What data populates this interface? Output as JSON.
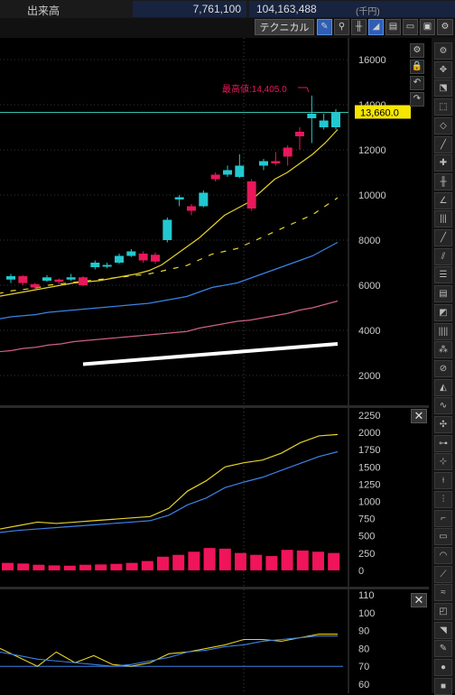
{
  "header": {
    "volume_label": "出来高",
    "volume_value": "7,761,100",
    "amount_value": "104,163,488",
    "amount_unit": "(千円)"
  },
  "toolbar": {
    "tech_label": "テクニカル",
    "icons": [
      "pencil-icon",
      "zoom-icon",
      "bar-type-icon",
      "area-chart-icon",
      "print-icon",
      "folder-icon",
      "save-icon",
      "settings-icon"
    ]
  },
  "main_chart": {
    "high_label": "最高値:14,405.0",
    "current_price": "13,660.0",
    "y_ticks": [
      "16000",
      "14000",
      "12000",
      "10000",
      "8000",
      "6000",
      "4000",
      "2000"
    ],
    "colors": {
      "up": "#22c8d0",
      "down": "#e8185a",
      "ma_short": "#e6d22a",
      "ma_mid": "#3c82e6",
      "ma_long": "#d06080",
      "current_line": "#3ac0b0"
    }
  },
  "volume_chart": {
    "y_ticks": [
      "2250",
      "2000",
      "1750",
      "1500",
      "1250",
      "1000",
      "750",
      "500",
      "250",
      "0"
    ],
    "colors": {
      "bar": "#f0145a",
      "line1": "#e6d22a",
      "line2": "#3c82e6"
    }
  },
  "osc_chart": {
    "y_ticks": [
      "110",
      "100",
      "90",
      "80",
      "70",
      "60"
    ],
    "colors": {
      "line1": "#e6d22a",
      "line2": "#3c82e6",
      "ref": "#3c82e6"
    }
  },
  "chart_data": {
    "type": "line",
    "candles": [
      {
        "o": 6250,
        "c": 6400,
        "h": 6500,
        "l": 6100
      },
      {
        "o": 6400,
        "c": 6100,
        "h": 6450,
        "l": 6000
      },
      {
        "o": 6050,
        "c": 5900,
        "h": 6100,
        "l": 5800
      },
      {
        "o": 6200,
        "c": 6350,
        "h": 6450,
        "l": 6150
      },
      {
        "o": 6250,
        "c": 6150,
        "h": 6300,
        "l": 6050
      },
      {
        "o": 6250,
        "c": 6350,
        "h": 6500,
        "l": 6200
      },
      {
        "o": 6350,
        "c": 6000,
        "h": 6400,
        "l": 5950
      },
      {
        "o": 6800,
        "c": 7000,
        "h": 7100,
        "l": 6700
      },
      {
        "o": 6850,
        "c": 6900,
        "h": 7000,
        "l": 6750
      },
      {
        "o": 7000,
        "c": 7300,
        "h": 7400,
        "l": 6950
      },
      {
        "o": 7300,
        "c": 7500,
        "h": 7600,
        "l": 7250
      },
      {
        "o": 7400,
        "c": 7100,
        "h": 7500,
        "l": 7000
      },
      {
        "o": 7350,
        "c": 7050,
        "h": 7450,
        "l": 6950
      },
      {
        "o": 8000,
        "c": 8900,
        "h": 9000,
        "l": 7900
      },
      {
        "o": 9800,
        "c": 9900,
        "h": 10000,
        "l": 9500
      },
      {
        "o": 9500,
        "c": 9300,
        "h": 9600,
        "l": 9100
      },
      {
        "o": 9500,
        "c": 10100,
        "h": 10200,
        "l": 9450
      },
      {
        "o": 10900,
        "c": 10700,
        "h": 11000,
        "l": 10600
      },
      {
        "o": 10900,
        "c": 11100,
        "h": 11300,
        "l": 10800
      },
      {
        "o": 10800,
        "c": 11300,
        "h": 11800,
        "l": 10750
      },
      {
        "o": 10600,
        "c": 9400,
        "h": 10700,
        "l": 9300
      },
      {
        "o": 11300,
        "c": 11500,
        "h": 11600,
        "l": 11100
      },
      {
        "o": 11500,
        "c": 11400,
        "h": 11900,
        "l": 11300
      },
      {
        "o": 12100,
        "c": 11700,
        "h": 12200,
        "l": 11300
      },
      {
        "o": 12800,
        "c": 12600,
        "h": 13000,
        "l": 12000
      },
      {
        "o": 13400,
        "c": 13600,
        "h": 14405,
        "l": 12300
      },
      {
        "o": 13000,
        "c": 13300,
        "h": 13600,
        "l": 12900
      },
      {
        "o": 13000,
        "c": 13660,
        "h": 13800,
        "l": 12900
      }
    ],
    "ma_short": [
      5500,
      5600,
      5700,
      5800,
      5900,
      6000,
      6100,
      6150,
      6200,
      6300,
      6400,
      6500,
      6650,
      6900,
      7300,
      7700,
      8100,
      8600,
      9100,
      9400,
      9700,
      10200,
      10700,
      11000,
      11400,
      11800,
      12300,
      12900
    ],
    "ma_mid": [
      4500,
      4600,
      4650,
      4700,
      4800,
      4850,
      4900,
      4950,
      5000,
      5050,
      5100,
      5150,
      5200,
      5300,
      5400,
      5500,
      5700,
      5900,
      6000,
      6100,
      6300,
      6500,
      6700,
      6900,
      7100,
      7300,
      7600,
      7900
    ],
    "ma_long": [
      3050,
      3100,
      3200,
      3250,
      3350,
      3400,
      3500,
      3550,
      3600,
      3650,
      3700,
      3750,
      3800,
      3850,
      3900,
      3950,
      4100,
      4200,
      4300,
      4400,
      4450,
      4550,
      4650,
      4750,
      4900,
      5000,
      5150,
      5300
    ],
    "ichimoku": [
      2500,
      2550,
      2600,
      2650,
      2700,
      2750,
      2800,
      2850,
      2900,
      2950,
      3000,
      3050,
      3100,
      3150,
      3200,
      3250,
      3300,
      3350,
      3400
    ],
    "volume": [
      120,
      110,
      90,
      80,
      75,
      90,
      95,
      105,
      120,
      150,
      220,
      250,
      300,
      360,
      350,
      280,
      250,
      230,
      330,
      320,
      300,
      280
    ],
    "vol_line1": [
      600,
      650,
      700,
      680,
      700,
      720,
      740,
      760,
      780,
      900,
      1150,
      1300,
      1500,
      1560,
      1600,
      1700,
      1850,
      1950,
      1970
    ],
    "vol_line2": [
      550,
      580,
      600,
      620,
      640,
      660,
      680,
      700,
      720,
      800,
      950,
      1050,
      1200,
      1280,
      1350,
      1450,
      1550,
      1650,
      1720
    ],
    "osc_line1": [
      80,
      75,
      70,
      78,
      72,
      76,
      71,
      70,
      72,
      77,
      78,
      80,
      82,
      85,
      85,
      84,
      86,
      88,
      88
    ],
    "osc_line2": [
      78,
      76,
      74,
      73,
      72,
      71,
      70,
      71,
      73,
      75,
      78,
      79,
      81,
      82,
      84,
      85,
      86,
      87,
      87
    ]
  }
}
